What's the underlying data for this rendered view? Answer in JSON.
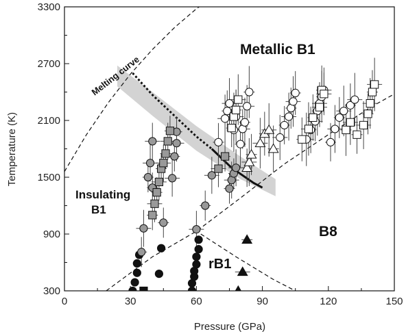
{
  "chart_data": {
    "type": "scatter",
    "xlabel": "Pressure (GPa)",
    "ylabel": "Temperature (K)",
    "xlim": [
      0,
      150
    ],
    "ylim": [
      300,
      3300
    ],
    "xticks": [
      0,
      30,
      60,
      90,
      120,
      150
    ],
    "yticks": [
      300,
      900,
      1500,
      2100,
      2700,
      3300
    ],
    "grid": false,
    "annotations": {
      "metallic_b1": "Metallic B1",
      "melting_curve": "Melting curve",
      "insulating_b1_line1": "Insulating",
      "insulating_b1_line2": "B1",
      "b8": "B8",
      "rb1": "rB1"
    },
    "lines": {
      "melting_curve": [
        [
          0,
          1560
        ],
        [
          10,
          1950
        ],
        [
          20,
          2290
        ],
        [
          30,
          2590
        ],
        [
          40,
          2850
        ],
        [
          50,
          3080
        ],
        [
          60,
          3280
        ],
        [
          70,
          3440
        ]
      ],
      "b1_b8_boundary": [
        [
          19,
          300
        ],
        [
          40,
          660
        ],
        [
          60,
          930
        ],
        [
          80,
          1280
        ],
        [
          100,
          1640
        ],
        [
          120,
          1950
        ],
        [
          140,
          2250
        ],
        [
          150,
          2380
        ]
      ],
      "rb1_boundary": [
        [
          62,
          900
        ],
        [
          78,
          660
        ],
        [
          95,
          420
        ],
        [
          105,
          300
        ]
      ],
      "transition_dotted": [
        [
          31,
          2600
        ],
        [
          40,
          2370
        ],
        [
          50,
          2150
        ],
        [
          60,
          1930
        ],
        [
          67,
          1800
        ]
      ],
      "transition_solid": [
        [
          67,
          1800
        ],
        [
          76,
          1600
        ],
        [
          86,
          1440
        ],
        [
          90,
          1390
        ]
      ],
      "transition_band_upper": [
        [
          24,
          2680
        ],
        [
          40,
          2400
        ],
        [
          60,
          2040
        ],
        [
          80,
          1720
        ],
        [
          96,
          1480
        ]
      ],
      "transition_band_lower": [
        [
          24,
          2460
        ],
        [
          40,
          2150
        ],
        [
          60,
          1780
        ],
        [
          80,
          1480
        ],
        [
          96,
          1300
        ]
      ]
    },
    "series": [
      {
        "marker": "circle",
        "fill": "#111111",
        "points": [
          [
            31,
            300
          ],
          [
            32,
            390
          ],
          [
            33,
            490
          ],
          [
            33,
            590
          ],
          [
            34,
            680
          ],
          [
            43,
            480
          ],
          [
            44,
            750
          ],
          [
            58,
            300
          ],
          [
            58,
            380
          ],
          [
            59,
            450
          ],
          [
            59,
            510
          ],
          [
            60,
            580
          ],
          [
            60,
            660
          ],
          [
            61,
            740
          ],
          [
            61,
            840
          ]
        ]
      },
      {
        "marker": "square",
        "fill": "#111111",
        "points": [
          [
            36,
            300
          ]
        ]
      },
      {
        "marker": "circle",
        "fill": "#999999",
        "points": [
          [
            35,
            710
          ],
          [
            36,
            960
          ],
          [
            38,
            1500
          ],
          [
            39,
            1650
          ],
          [
            40,
            1390
          ],
          [
            40,
            1880
          ],
          [
            45,
            1020
          ],
          [
            49,
            1490
          ],
          [
            50,
            1720
          ],
          [
            51,
            1860
          ],
          [
            51,
            1980
          ],
          [
            60,
            950
          ],
          [
            64,
            1200
          ],
          [
            67,
            1520
          ],
          [
            75,
            1380
          ],
          [
            76,
            1470
          ],
          [
            77,
            1540
          ],
          [
            78,
            1600
          ]
        ]
      },
      {
        "marker": "square",
        "fill": "#999999",
        "points": [
          [
            40,
            1100
          ],
          [
            41,
            1220
          ],
          [
            42,
            1340
          ],
          [
            43,
            1450
          ],
          [
            44,
            1590
          ],
          [
            45,
            1650
          ],
          [
            46,
            1750
          ],
          [
            47,
            1880
          ],
          [
            48,
            1990
          ],
          [
            70,
            1590
          ],
          [
            73,
            1720
          ]
        ]
      },
      {
        "marker": "circle",
        "fill": "#ffffff",
        "points": [
          [
            70,
            1870
          ],
          [
            73,
            2120
          ],
          [
            74,
            2200
          ],
          [
            75,
            2280
          ],
          [
            77,
            2000
          ],
          [
            78,
            2140
          ],
          [
            80,
            1850
          ],
          [
            81,
            2010
          ],
          [
            82,
            2080
          ],
          [
            83,
            2250
          ],
          [
            84,
            2400
          ],
          [
            98,
            1920
          ],
          [
            100,
            2050
          ],
          [
            102,
            2140
          ],
          [
            103,
            2230
          ],
          [
            104,
            2300
          ],
          [
            105,
            2390
          ],
          [
            110,
            1900
          ],
          [
            112,
            2000
          ],
          [
            114,
            2090
          ],
          [
            115,
            2200
          ],
          [
            116,
            2280
          ],
          [
            117,
            2350
          ],
          [
            118,
            2420
          ],
          [
            121,
            1870
          ],
          [
            123,
            2010
          ],
          [
            125,
            2130
          ],
          [
            127,
            2200
          ],
          [
            130,
            2260
          ],
          [
            132,
            2320
          ]
        ]
      },
      {
        "marker": "square",
        "fill": "#ffffff",
        "points": [
          [
            76,
            2020
          ],
          [
            77,
            2140
          ],
          [
            78,
            2210
          ],
          [
            79,
            2320
          ],
          [
            108,
            1900
          ],
          [
            111,
            2010
          ],
          [
            113,
            2130
          ],
          [
            116,
            2240
          ],
          [
            117,
            2420
          ],
          [
            118,
            2380
          ],
          [
            128,
            2000
          ],
          [
            130,
            2080
          ],
          [
            133,
            1950
          ],
          [
            136,
            2050
          ],
          [
            138,
            2170
          ],
          [
            139,
            2280
          ],
          [
            140,
            2400
          ],
          [
            141,
            2480
          ]
        ]
      },
      {
        "marker": "triangle",
        "fill": "#ffffff",
        "points": [
          [
            83,
            1600
          ],
          [
            84,
            1660
          ],
          [
            85,
            1740
          ],
          [
            89,
            1860
          ],
          [
            91,
            1960
          ],
          [
            93,
            2000
          ],
          [
            95,
            1800
          ]
        ]
      },
      {
        "marker": "triangle",
        "fill": "#111111",
        "points": [
          [
            79,
            300
          ],
          [
            81,
            500
          ],
          [
            83,
            840
          ]
        ]
      }
    ]
  }
}
